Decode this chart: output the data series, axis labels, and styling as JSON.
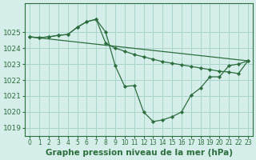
{
  "xlabel": "Graphe pression niveau de la mer (hPa)",
  "background_color": "#d5eeea",
  "grid_color": "#aad4cc",
  "line_color": "#2d6e3e",
  "marker_color": "#2d6e3e",
  "ylim": [
    1018.5,
    1026.8
  ],
  "xlim": [
    -0.5,
    23.5
  ],
  "yticks": [
    1019,
    1020,
    1021,
    1022,
    1023,
    1024,
    1025
  ],
  "xticks": [
    0,
    1,
    2,
    3,
    4,
    5,
    6,
    7,
    8,
    9,
    10,
    11,
    12,
    13,
    14,
    15,
    16,
    17,
    18,
    19,
    20,
    21,
    22,
    23
  ],
  "series1": [
    [
      0,
      1024.7
    ],
    [
      1,
      1024.65
    ],
    [
      2,
      1024.7
    ],
    [
      3,
      1024.8
    ],
    [
      4,
      1024.85
    ],
    [
      5,
      1025.3
    ],
    [
      6,
      1025.65
    ],
    [
      7,
      1025.8
    ],
    [
      8,
      1025.0
    ],
    [
      9,
      1022.9
    ],
    [
      10,
      1021.6
    ],
    [
      11,
      1021.65
    ],
    [
      12,
      1020.0
    ],
    [
      13,
      1019.4
    ],
    [
      14,
      1019.5
    ],
    [
      15,
      1019.7
    ],
    [
      16,
      1020.0
    ],
    [
      17,
      1021.05
    ],
    [
      18,
      1021.5
    ],
    [
      19,
      1022.2
    ],
    [
      20,
      1022.2
    ],
    [
      21,
      1022.9
    ],
    [
      22,
      1023.0
    ],
    [
      23,
      1023.2
    ]
  ],
  "series2": [
    [
      0,
      1024.7
    ],
    [
      1,
      1024.65
    ],
    [
      2,
      1024.7
    ],
    [
      3,
      1024.8
    ],
    [
      4,
      1024.85
    ],
    [
      5,
      1025.3
    ],
    [
      6,
      1025.65
    ],
    [
      7,
      1025.8
    ],
    [
      8,
      1024.3
    ],
    [
      9,
      1024.0
    ],
    [
      10,
      1023.8
    ],
    [
      11,
      1023.6
    ],
    [
      12,
      1023.45
    ],
    [
      13,
      1023.3
    ],
    [
      14,
      1023.15
    ],
    [
      15,
      1023.05
    ],
    [
      16,
      1022.95
    ],
    [
      17,
      1022.85
    ],
    [
      18,
      1022.75
    ],
    [
      19,
      1022.65
    ],
    [
      20,
      1022.55
    ],
    [
      21,
      1022.5
    ],
    [
      22,
      1022.4
    ],
    [
      23,
      1023.2
    ]
  ],
  "series3_x": [
    0,
    23
  ],
  "series3_y": [
    1024.7,
    1023.2
  ],
  "xlabel_fontsize": 7.5,
  "tick_fontsize": 6.5,
  "xtick_fontsize": 5.5
}
